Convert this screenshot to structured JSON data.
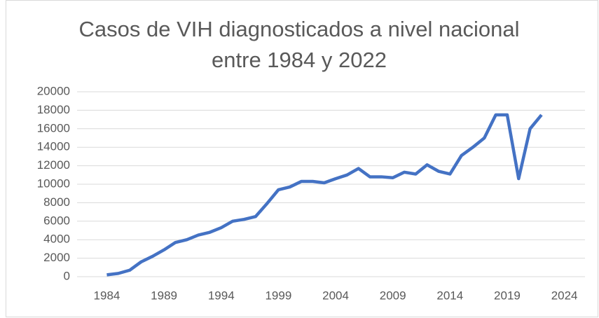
{
  "chart_data": {
    "type": "line",
    "title": "Casos de VIH diagnosticados a nivel nacional entre 1984 y 2022",
    "x": [
      1984,
      1985,
      1986,
      1987,
      1988,
      1989,
      1990,
      1991,
      1992,
      1993,
      1994,
      1995,
      1996,
      1997,
      1998,
      1999,
      2000,
      2001,
      2002,
      2003,
      2004,
      2005,
      2006,
      2007,
      2008,
      2009,
      2010,
      2011,
      2012,
      2013,
      2014,
      2015,
      2016,
      2017,
      2018,
      2019,
      2020,
      2021,
      2022
    ],
    "series": [
      {
        "color": "#4472c4",
        "values": [
          200,
          350,
          700,
          1600,
          2200,
          2900,
          3700,
          4000,
          4500,
          4800,
          5300,
          6000,
          6200,
          6500,
          7900,
          9400,
          9700,
          10300,
          10300,
          10150,
          10600,
          11000,
          11700,
          10800,
          10800,
          10700,
          11300,
          11100,
          12100,
          11400,
          11100,
          13100,
          14000,
          15000,
          17500,
          17500,
          10600,
          16000,
          17500
        ]
      }
    ],
    "xlim": [
      1981.4,
      2025.8
    ],
    "xticks": [
      1984,
      1989,
      1994,
      1999,
      2004,
      2009,
      2014,
      2019,
      2024
    ],
    "ylim": [
      0,
      20000
    ],
    "yticks": [
      0,
      2000,
      4000,
      6000,
      8000,
      10000,
      12000,
      14000,
      16000,
      18000,
      20000
    ],
    "grid": true
  }
}
